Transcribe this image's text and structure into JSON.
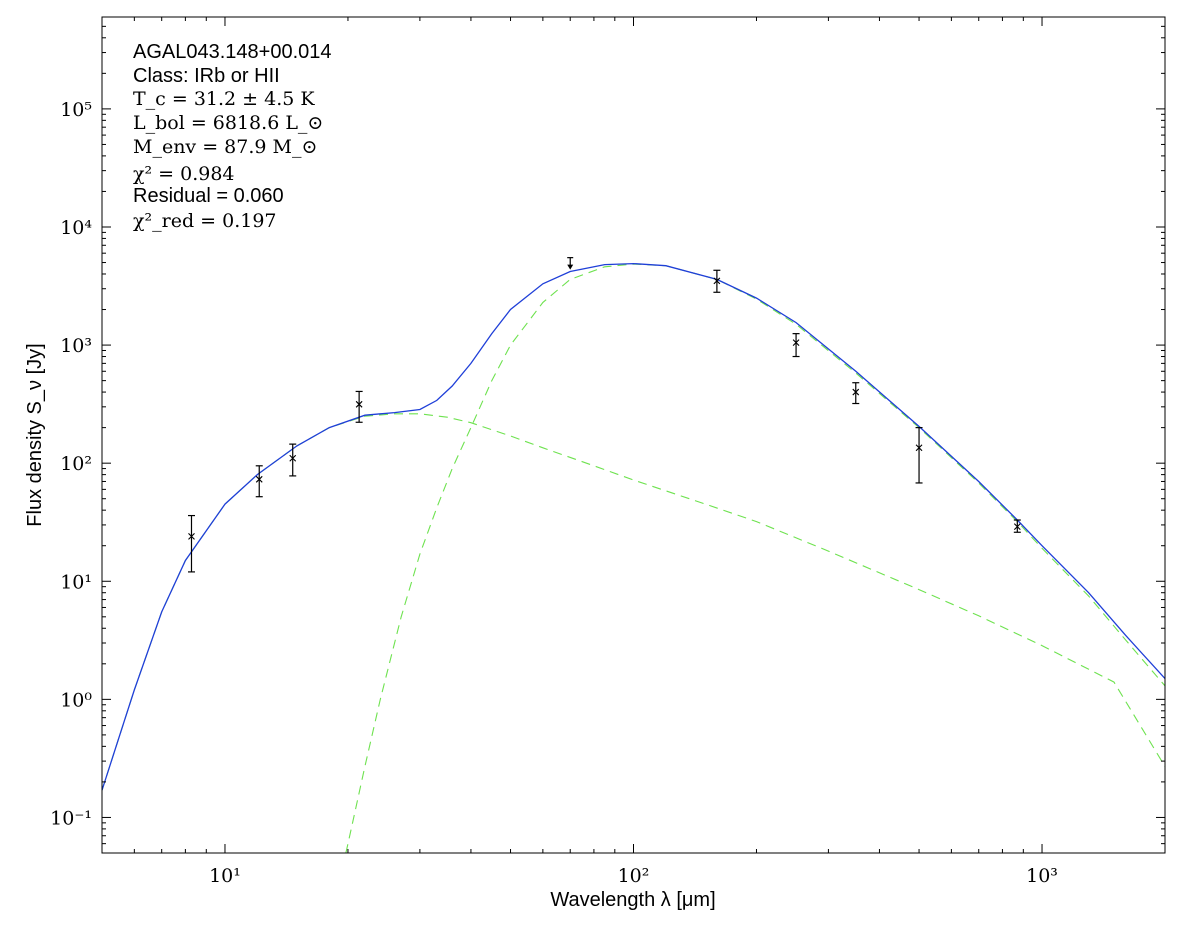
{
  "chart_data": {
    "type": "line",
    "xlabel": "Wavelength λ [μm]",
    "ylabel": "Flux density S_ν [Jy]",
    "xscale": "log",
    "yscale": "log",
    "xlim": [
      5,
      2000
    ],
    "ylim": [
      0.05,
      600000
    ],
    "grid": false,
    "x_tick_labels": [
      "10¹",
      "10²",
      "10³"
    ],
    "y_tick_labels": [
      "10⁻¹",
      "10⁰",
      "10¹",
      "10²",
      "10³",
      "10⁴",
      "10⁵"
    ],
    "annotations": [
      "AGAL043.148+00.014",
      "Class: IRb or HII",
      "T_c = 31.2 ± 4.5 K",
      "L_bol = 6818.6 L_⊙",
      "M_env = 87.9 M_⊙",
      "χ² = 0.984",
      "Residual = 0.060",
      "χ²_red = 0.197"
    ],
    "measurements": [
      {
        "x": 8.28,
        "y": 24,
        "yerr_low": 12,
        "yerr_high": 36
      },
      {
        "x": 12.13,
        "y": 73,
        "yerr_low": 52,
        "yerr_high": 95
      },
      {
        "x": 14.65,
        "y": 110,
        "yerr_low": 78,
        "yerr_high": 145
      },
      {
        "x": 21.3,
        "y": 315,
        "yerr_low": 222,
        "yerr_high": 405
      },
      {
        "x": 160,
        "y": 3500,
        "yerr_low": 2800,
        "yerr_high": 4300
      },
      {
        "x": 250,
        "y": 1050,
        "yerr_low": 800,
        "yerr_high": 1250
      },
      {
        "x": 350,
        "y": 400,
        "yerr_low": 320,
        "yerr_high": 480
      },
      {
        "x": 500,
        "y": 135,
        "yerr_low": 68,
        "yerr_high": 200
      },
      {
        "x": 870,
        "y": 29,
        "yerr_low": 26,
        "yerr_high": 33
      }
    ],
    "upper_limits": [
      {
        "x": 70,
        "y": 5500
      }
    ],
    "series": [
      {
        "style": "solid",
        "color": "#1f3fd8",
        "x": [
          5,
          6,
          7,
          8,
          10,
          12,
          15,
          18,
          22,
          26,
          30,
          33,
          36,
          40,
          45,
          50,
          60,
          70,
          85,
          100,
          120,
          160,
          200,
          250,
          350,
          500,
          700,
          870,
          1000,
          1300,
          1600,
          2000
        ],
        "y": [
          0.17,
          1.2,
          5.5,
          15,
          45,
          80,
          140,
          200,
          255,
          268,
          285,
          340,
          450,
          700,
          1250,
          2000,
          3300,
          4200,
          4800,
          4900,
          4700,
          3600,
          2500,
          1550,
          600,
          205,
          70,
          33,
          20,
          8,
          3.5,
          1.5
        ]
      },
      {
        "style": "dashed",
        "color": "#6ee24f",
        "x": [
          18,
          20,
          22,
          24,
          27,
          30,
          33,
          36,
          40,
          45,
          50,
          60,
          70,
          85,
          100,
          120,
          160,
          200,
          250,
          350,
          500,
          700,
          870,
          1000,
          1300,
          1600,
          2000
        ],
        "y": [
          0.012,
          0.06,
          0.27,
          1.0,
          5,
          17,
          42,
          90,
          200,
          500,
          1000,
          2300,
          3600,
          4600,
          4850,
          4700,
          3600,
          2450,
          1500,
          580,
          200,
          68,
          32,
          19,
          7.5,
          3.2,
          1.3
        ]
      },
      {
        "style": "dashed",
        "color": "#6ee24f",
        "x": [
          5,
          6,
          7,
          8,
          10,
          12,
          15,
          18,
          22,
          26,
          30,
          35,
          40,
          50,
          60,
          80,
          100,
          150,
          200,
          300,
          500,
          700,
          1000,
          1500,
          2000
        ],
        "y": [
          0.17,
          1.2,
          5.5,
          15,
          45,
          80,
          140,
          200,
          250,
          262,
          262,
          245,
          220,
          170,
          135,
          95,
          72,
          45,
          32,
          18,
          8.5,
          5.1,
          2.85,
          1.4,
          0.27
        ]
      }
    ]
  }
}
